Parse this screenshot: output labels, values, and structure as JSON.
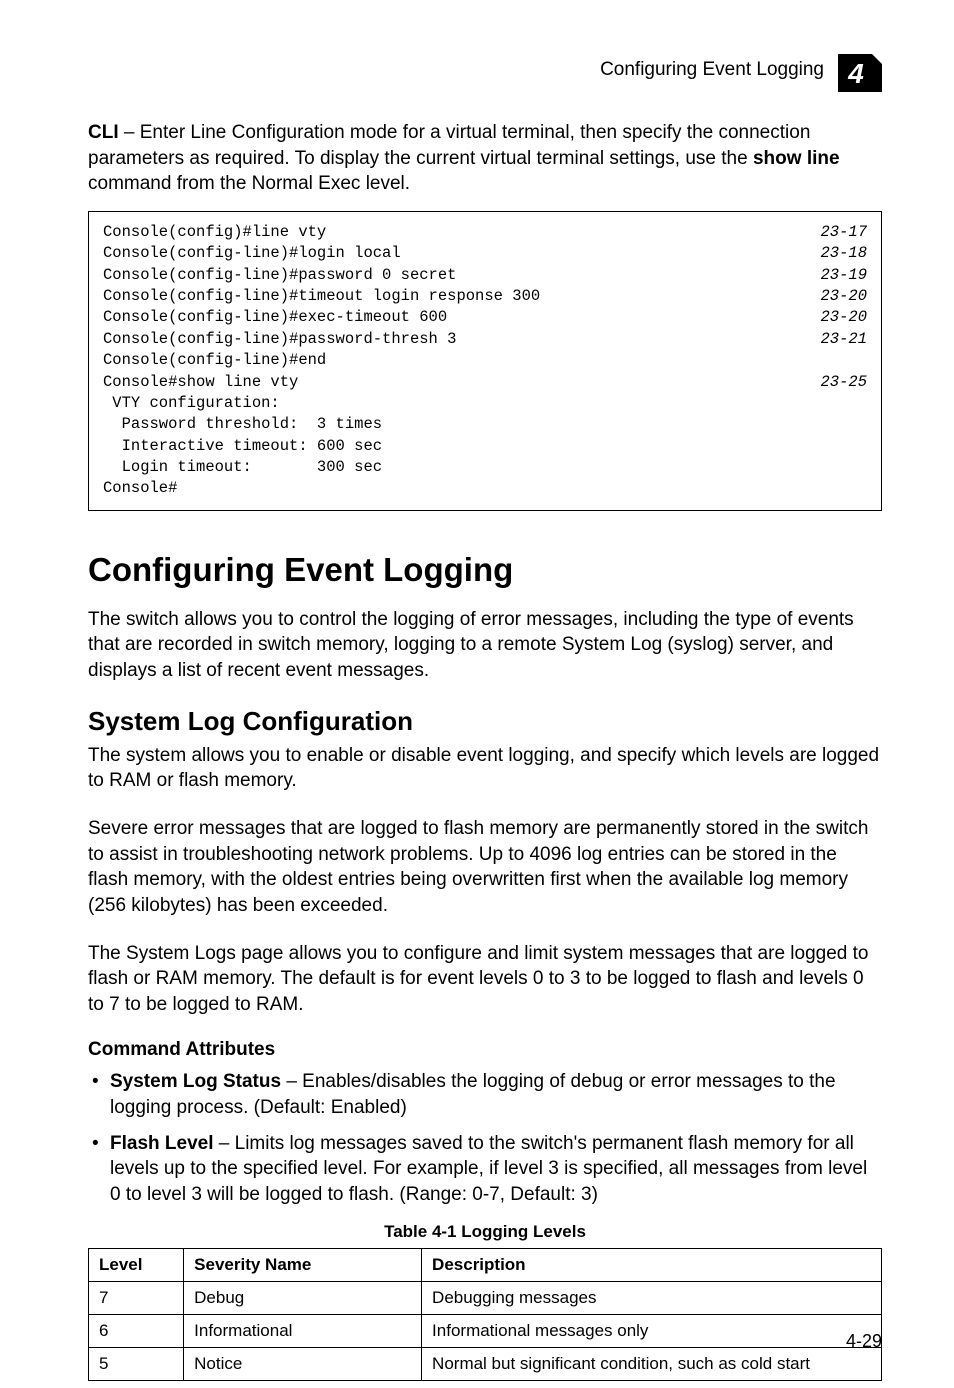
{
  "header": {
    "running_title": "Configuring Event Logging",
    "chapter_number": "4"
  },
  "intro": {
    "prefix_bold": "CLI",
    "text_after_prefix": " – Enter Line Configuration mode for a virtual terminal, then specify the connection parameters as required. To display the current virtual terminal settings, use the ",
    "bold_inline": "show line",
    "text_tail": " command from the Normal Exec level."
  },
  "codebox": {
    "lines": [
      {
        "cmd": "Console(config)#line vty",
        "ref": "23-17"
      },
      {
        "cmd": "Console(config-line)#login local",
        "ref": "23-18"
      },
      {
        "cmd": "Console(config-line)#password 0 secret",
        "ref": "23-19"
      },
      {
        "cmd": "Console(config-line)#timeout login response 300",
        "ref": "23-20"
      },
      {
        "cmd": "Console(config-line)#exec-timeout 600",
        "ref": "23-20"
      },
      {
        "cmd": "Console(config-line)#password-thresh 3",
        "ref": "23-21"
      },
      {
        "cmd": "Console(config-line)#end",
        "ref": ""
      },
      {
        "cmd": "Console#show line vty",
        "ref": "23-25"
      },
      {
        "cmd": " VTY configuration:",
        "ref": ""
      },
      {
        "cmd": "  Password threshold:  3 times",
        "ref": ""
      },
      {
        "cmd": "  Interactive timeout: 600 sec",
        "ref": ""
      },
      {
        "cmd": "  Login timeout:       300 sec",
        "ref": ""
      },
      {
        "cmd": "Console#",
        "ref": ""
      }
    ]
  },
  "section": {
    "title": "Configuring Event Logging",
    "para": "The switch allows you to control the logging of error messages, including the type of events that are recorded in switch memory, logging to a remote System Log (syslog) server, and displays a list of recent event messages."
  },
  "subsection": {
    "title": "System Log Configuration",
    "para1": "The system allows you to enable or disable event logging, and specify which levels are logged to RAM or flash memory.",
    "para2": "Severe error messages that are logged to flash memory are permanently stored in the switch to assist in troubleshooting network problems. Up to 4096 log entries can be stored in the flash memory, with the oldest entries being overwritten first when the available log memory (256 kilobytes) has been exceeded.",
    "para3": "The System Logs page allows you to configure and limit system messages that are logged to flash or RAM memory. The default is for event levels 0 to 3 to be logged to flash and levels 0 to 7 to be logged to RAM."
  },
  "command_attributes": {
    "heading": "Command Attributes",
    "items": [
      {
        "term": "System Log Status",
        "desc": " – Enables/disables the logging of debug or error messages to the logging process. (Default: Enabled)"
      },
      {
        "term": "Flash Level",
        "desc": " – Limits log messages saved to the switch's permanent flash memory for all levels up to the specified level. For example, if level 3 is specified, all messages from level 0 to level 3 will be logged to flash. (Range: 0-7, Default: 3)"
      }
    ]
  },
  "table": {
    "caption": "Table 4-1   Logging Levels",
    "headers": [
      "Level",
      "Severity Name",
      "Description"
    ],
    "rows": [
      [
        "7",
        "Debug",
        "Debugging messages"
      ],
      [
        "6",
        "Informational",
        "Informational messages only"
      ],
      [
        "5",
        "Notice",
        "Normal but significant condition, such as cold start"
      ]
    ]
  },
  "page_number": "4-29",
  "colors": {
    "text": "#000000",
    "background": "#ffffff",
    "border": "#000000"
  }
}
